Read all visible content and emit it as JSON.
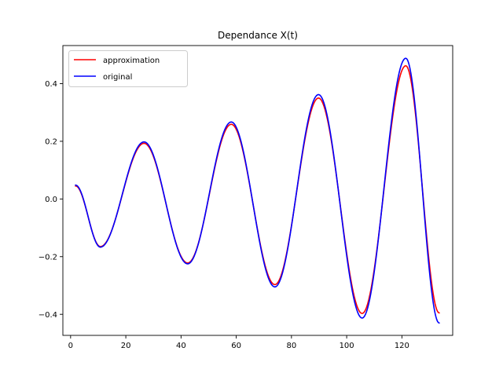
{
  "chart_data": {
    "type": "line",
    "title": "Dependance X(t)",
    "xlabel": "",
    "ylabel": "",
    "xlim": [
      -2.8,
      138.4
    ],
    "ylim": [
      -0.473,
      0.532
    ],
    "x_ticks": [
      0,
      20,
      40,
      60,
      80,
      100,
      120
    ],
    "y_ticks": [
      -0.4,
      -0.2,
      0.0,
      0.2,
      0.4
    ],
    "y_tick_labels": [
      "−0.4",
      "−0.2",
      "0.0",
      "0.2",
      "0.4"
    ],
    "x_tick_labels": [
      "0",
      "20",
      "40",
      "60",
      "80",
      "100",
      "120"
    ],
    "grid": false,
    "legend_position": "upper left",
    "series": [
      {
        "name": "approximation",
        "color": "#ff0000",
        "points": [
          [
            1.8,
            0.045
          ],
          [
            10.8,
            -0.165
          ],
          [
            26.6,
            0.193
          ],
          [
            42.4,
            -0.222
          ],
          [
            58.2,
            0.259
          ],
          [
            74.0,
            -0.297
          ],
          [
            89.8,
            0.35
          ],
          [
            105.6,
            -0.397
          ],
          [
            121.4,
            0.462
          ],
          [
            133.5,
            -0.395
          ]
        ]
      },
      {
        "name": "original",
        "color": "#0000ff",
        "points": [
          [
            1.8,
            0.048
          ],
          [
            10.8,
            -0.167
          ],
          [
            26.6,
            0.198
          ],
          [
            42.4,
            -0.225
          ],
          [
            58.2,
            0.267
          ],
          [
            74.0,
            -0.305
          ],
          [
            89.8,
            0.362
          ],
          [
            105.6,
            -0.413
          ],
          [
            121.4,
            0.488
          ],
          [
            133.5,
            -0.43
          ]
        ]
      }
    ]
  }
}
